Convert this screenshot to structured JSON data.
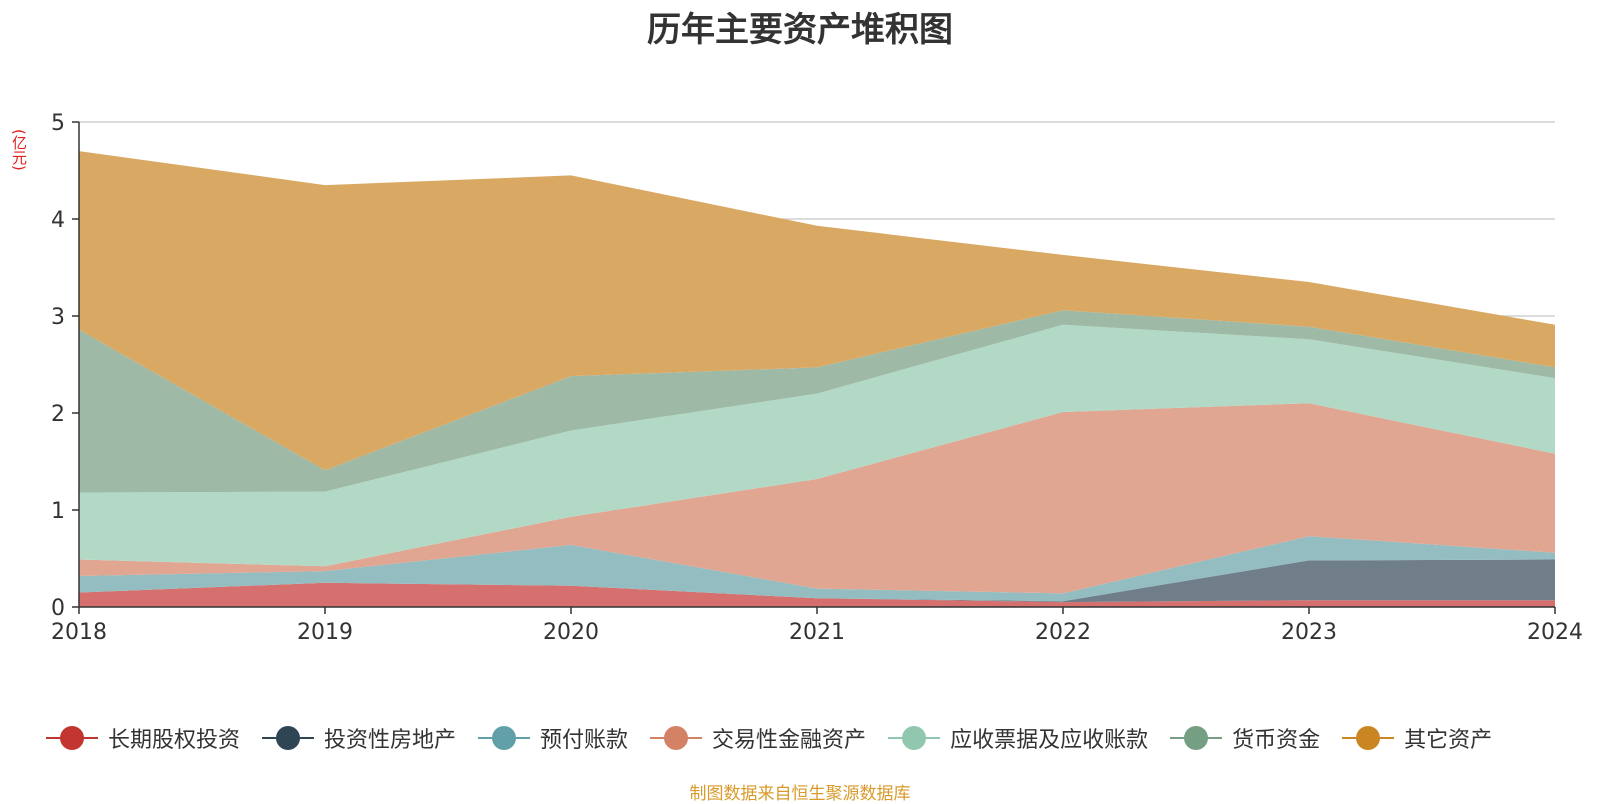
{
  "title": "历年主要资产堆积图",
  "unit": "(亿元)",
  "source": "制图数据来自恒生聚源数据库",
  "chart_data": {
    "type": "area",
    "stacked": true,
    "title": "历年主要资产堆积图",
    "ylabel": "(亿元)",
    "categories": [
      "2018",
      "2019",
      "2020",
      "2021",
      "2022",
      "2023",
      "2024"
    ],
    "ylim": [
      0,
      5
    ],
    "yticks": [
      0,
      1,
      2,
      3,
      4,
      5
    ],
    "grid": true,
    "legend_position": "bottom",
    "series": [
      {
        "name": "长期股权投资",
        "color": "#c23531",
        "fill": "#d6706e",
        "values": [
          0.15,
          0.25,
          0.22,
          0.09,
          0.05,
          0.07,
          0.07
        ]
      },
      {
        "name": "投资性房地产",
        "color": "#2f4554",
        "fill": "#6f7e89",
        "values": [
          0,
          0,
          0,
          0,
          0.01,
          0.41,
          0.42
        ]
      },
      {
        "name": "预付账款",
        "color": "#61a0a8",
        "fill": "#93bdc1",
        "values": [
          0.17,
          0.12,
          0.42,
          0.1,
          0.08,
          0.25,
          0.07
        ]
      },
      {
        "name": "交易性金融资产",
        "color": "#d48265",
        "fill": "#e0a692",
        "values": [
          0.17,
          0.05,
          0.29,
          1.13,
          1.87,
          1.37,
          1.02
        ]
      },
      {
        "name": "应收票据及应收账款",
        "color": "#91c7ae",
        "fill": "#b2d9c6",
        "values": [
          0.69,
          0.77,
          0.89,
          0.88,
          0.9,
          0.66,
          0.78
        ]
      },
      {
        "name": "货币资金",
        "color": "#749f83",
        "fill": "#9eb9a6",
        "values": [
          1.68,
          0.22,
          0.56,
          0.27,
          0.15,
          0.13,
          0.11
        ]
      },
      {
        "name": "其它资产",
        "color": "#ca8622",
        "fill": "#d9a963",
        "values": [
          1.84,
          2.94,
          2.07,
          1.46,
          0.57,
          0.46,
          0.44
        ]
      }
    ]
  }
}
